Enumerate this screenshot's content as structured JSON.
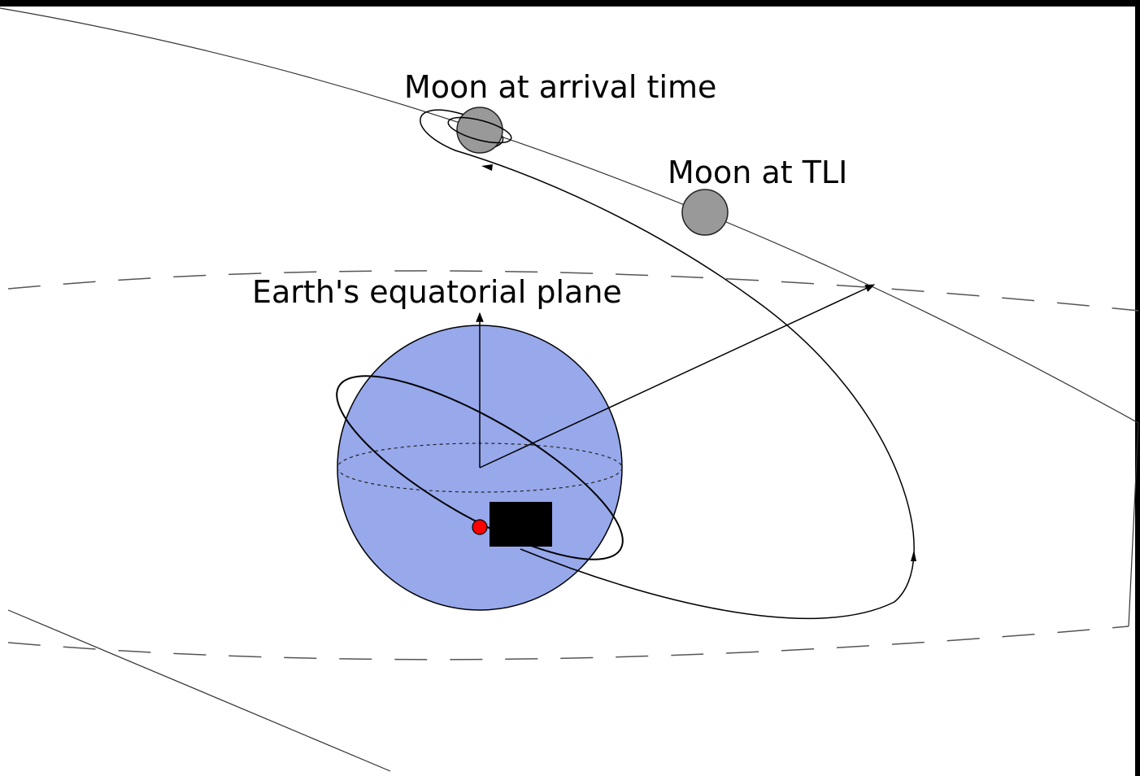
{
  "labels": {
    "moon_arrival": "Moon at arrival time",
    "moon_tli": "Moon at TLI",
    "equatorial_plane": "Earth's equatorial plane"
  }
}
